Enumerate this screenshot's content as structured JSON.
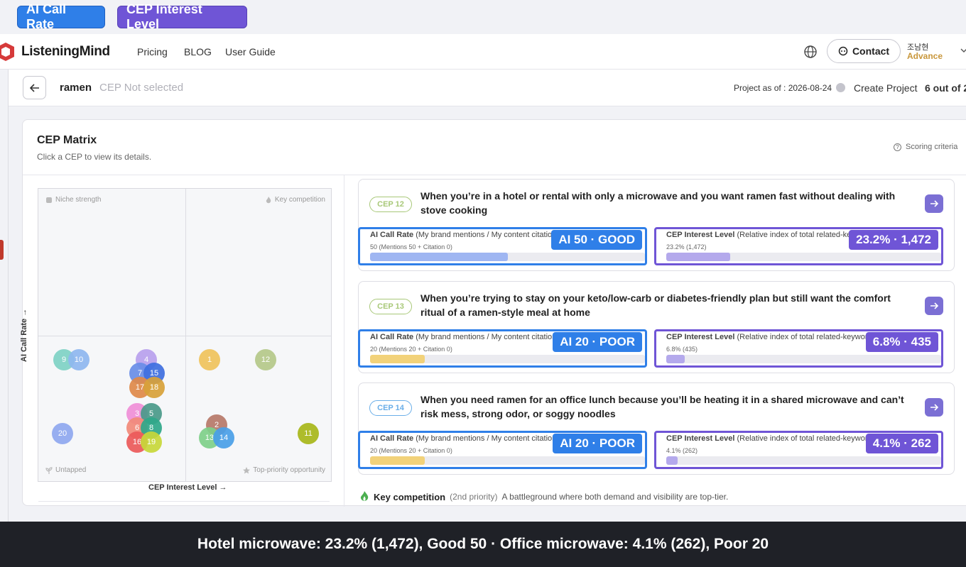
{
  "legend": {
    "ai_label": "AI Call Rate",
    "cep_label": "CEP Interest Level"
  },
  "nav": {
    "brand": "ListeningMind",
    "links": [
      "Pricing",
      "BLOG",
      "User Guide"
    ],
    "contact_label": "Contact",
    "user_name": "조남현",
    "user_plan": "Advance"
  },
  "project": {
    "name": "ramen",
    "cep_status": "CEP Not selected",
    "as_of": "Project as of : 2026-08-24",
    "create_label": "Create Project",
    "count": "6 out of 2"
  },
  "panel": {
    "title": "CEP Matrix",
    "subtitle": "Click a CEP to view its details.",
    "scoring_label": "Scoring criteria"
  },
  "matrix": {
    "quadrants": {
      "top_left": "Niche strength",
      "top_right": "Key competition",
      "bottom_left": "Untapped",
      "bottom_right": "Top-priority opportunity"
    },
    "y_axis": "AI Call Rate →",
    "x_axis": "CEP Interest Level →",
    "dots": [
      {
        "label": "9",
        "color": "#7fd3c6"
      },
      {
        "label": "10",
        "color": "#8fb8f0"
      },
      {
        "label": "4",
        "color": "#b9a1ee"
      },
      {
        "label": "7",
        "color": "#6a8ee8"
      },
      {
        "label": "15",
        "color": "#3f6fe0"
      },
      {
        "label": "17",
        "color": "#e08a4a"
      },
      {
        "label": "18",
        "color": "#d8a23a"
      },
      {
        "label": "1",
        "color": "#f0c35c"
      },
      {
        "label": "12",
        "color": "#b5c98a"
      },
      {
        "label": "3",
        "color": "#f08fd8"
      },
      {
        "label": "5",
        "color": "#4a9a8a"
      },
      {
        "label": "6",
        "color": "#f28a7a"
      },
      {
        "label": "8",
        "color": "#2fa88a"
      },
      {
        "label": "16",
        "color": "#ec5a5a"
      },
      {
        "label": "19",
        "color": "#c8d83a"
      },
      {
        "label": "20",
        "color": "#8fa8f0"
      },
      {
        "label": "2",
        "color": "#b87a6a"
      },
      {
        "label": "13",
        "color": "#7fd08a"
      },
      {
        "label": "14",
        "color": "#4aa0e8"
      },
      {
        "label": "11",
        "color": "#a8b81a"
      }
    ]
  },
  "cards": [
    {
      "badge": "CEP 12",
      "badge_color": "#a8c878",
      "text": "When you’re in a hotel or rental with only a microwave and you want ramen fast without dealing with stove cooking",
      "ai_title": "AI Call Rate",
      "ai_title_rest": " (My brand mentions / My content citations)",
      "ai_sub": "50 (Mentions 50 + Citation 0)",
      "ai_fill_pct": 50,
      "ai_fill_color": "#9fb6f2",
      "ai_overlay": "AI 50 · GOOD",
      "cp_title": "CEP Interest Level",
      "cp_title_rest": " (Relative index of total related-keyword search vol.)",
      "cp_sub": "23.2% (1,472)",
      "cp_fill_pct": 23.2,
      "cp_fill_color": "#b4a9ec",
      "cp_overlay": "23.2% · 1,472"
    },
    {
      "badge": "CEP 13",
      "badge_color": "#a8c878",
      "text": "When you’re trying to stay on your keto/low-carb or diabetes-friendly plan but still want the comfort ritual of a ramen-style meal at home",
      "ai_title": "AI Call Rate",
      "ai_title_rest": " (My brand mentions / My content citations)",
      "ai_sub": "20 (Mentions 20 + Citation 0)",
      "ai_fill_pct": 20,
      "ai_fill_color": "#f2d27a",
      "ai_overlay": "AI 20 · POOR",
      "cp_title": "CEP Interest Level",
      "cp_title_rest": " (Relative index of total related-keyword search vol.)",
      "cp_sub": "6.8% (435)",
      "cp_fill_pct": 6.8,
      "cp_fill_color": "#b4a9ec",
      "cp_overlay": "6.8% · 435"
    },
    {
      "badge": "CEP 14",
      "badge_color": "#6aaee8",
      "text": "When you need ramen for an office lunch because you’ll be heating it in a shared microwave and can’t risk mess, strong odor, or soggy noodles",
      "ai_title": "AI Call Rate",
      "ai_title_rest": " (My brand mentions / My content citations)",
      "ai_sub": "20 (Mentions 20 + Citation 0)",
      "ai_fill_pct": 20,
      "ai_fill_color": "#f2d27a",
      "ai_overlay": "AI 20 · POOR",
      "cp_title": "CEP Interest Level",
      "cp_title_rest": " (Relative index of total related-keyword search vol.)",
      "cp_sub": "4.1% (262)",
      "cp_fill_pct": 4.1,
      "cp_fill_color": "#b4a9ec",
      "cp_overlay": "4.1% · 262"
    }
  ],
  "key_note": {
    "title": "Key competition",
    "priority": "(2nd priority)",
    "desc": "A battleground where both demand and visibility are top-tier."
  },
  "caption": "Hotel microwave: 23.2% (1,472), Good 50 · Office microwave: 4.1% (262), Poor 20"
}
